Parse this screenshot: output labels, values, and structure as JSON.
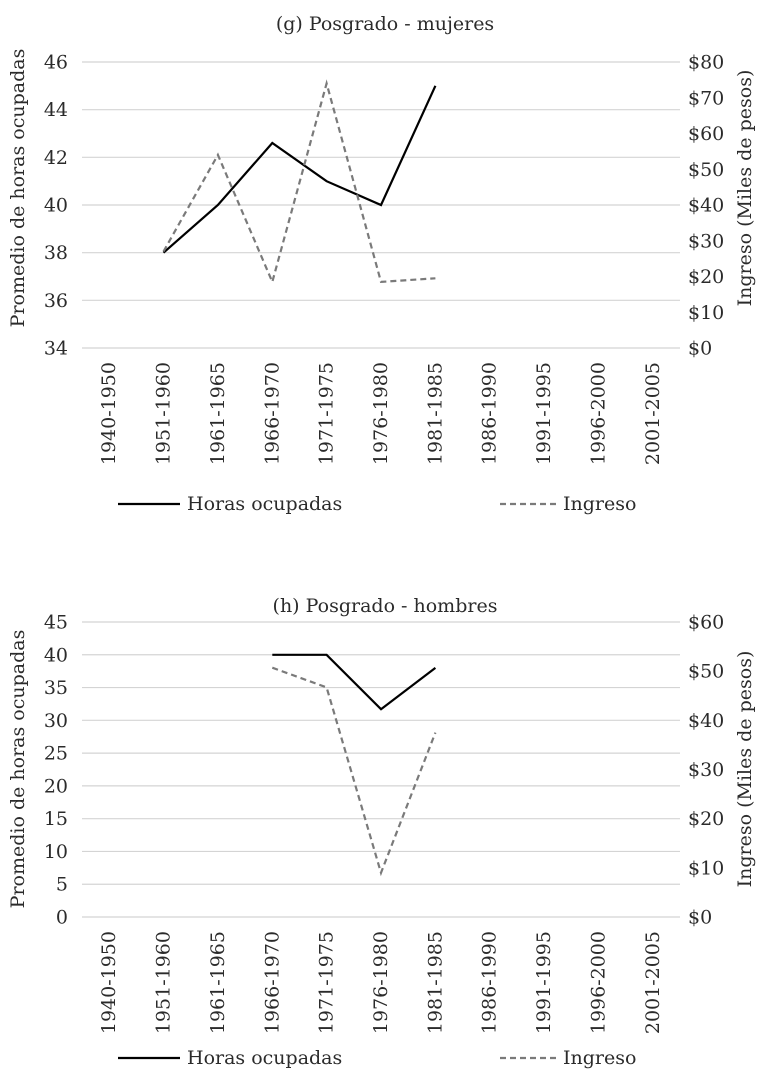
{
  "chart_data": [
    {
      "type": "line",
      "title": "(g) Posgrado - mujeres",
      "ylabel": "Promedio de horas ocupadas",
      "y2label": "Ingreso (Miles de pesos)",
      "categories": [
        "1940-1950",
        "1951-1960",
        "1961-1965",
        "1966-1970",
        "1971-1975",
        "1976-1980",
        "1981-1985",
        "1986-1990",
        "1991-1995",
        "1996-2000",
        "2001-2005"
      ],
      "ylim": [
        34,
        46
      ],
      "yticks": [
        34,
        36,
        38,
        40,
        42,
        44,
        46
      ],
      "y2lim": [
        0,
        80
      ],
      "y2ticks": [
        "$0",
        "$10",
        "$20",
        "$30",
        "$40",
        "$50",
        "$60",
        "$70",
        "$80"
      ],
      "grid": true,
      "legend_position": "bottom",
      "series": [
        {
          "name": "Horas ocupadas",
          "axis": "left",
          "style": "solid",
          "color": "#000000",
          "values": [
            null,
            38,
            40,
            42.6,
            41,
            40,
            45,
            null,
            null,
            null,
            null
          ]
        },
        {
          "name": "Ingreso",
          "axis": "right",
          "style": "dashed",
          "color": "#7a7a7a",
          "values": [
            null,
            27,
            54,
            18.5,
            74,
            18.5,
            19.5,
            null,
            null,
            null,
            null
          ]
        }
      ]
    },
    {
      "type": "line",
      "title": "(h) Posgrado - hombres",
      "ylabel": "Promedio de horas ocupadas",
      "y2label": "Ingreso (Miles de pesos)",
      "categories": [
        "1940-1950",
        "1951-1960",
        "1961-1965",
        "1966-1970",
        "1971-1975",
        "1976-1980",
        "1981-1985",
        "1986-1990",
        "1991-1995",
        "1996-2000",
        "2001-2005"
      ],
      "ylim": [
        0,
        45
      ],
      "yticks": [
        0,
        5,
        10,
        15,
        20,
        25,
        30,
        35,
        40,
        45
      ],
      "y2lim": [
        0,
        60
      ],
      "y2ticks": [
        "$0",
        "$10",
        "$20",
        "$30",
        "$40",
        "$50",
        "$60"
      ],
      "grid": true,
      "legend_position": "bottom",
      "series": [
        {
          "name": "Horas ocupadas",
          "axis": "left",
          "style": "solid",
          "color": "#000000",
          "values": [
            null,
            null,
            null,
            40,
            40,
            31.7,
            38,
            null,
            null,
            null,
            null
          ]
        },
        {
          "name": "Ingreso",
          "axis": "right",
          "style": "dashed",
          "color": "#7a7a7a",
          "values": [
            null,
            null,
            null,
            50.7,
            46.7,
            9,
            37.5,
            null,
            null,
            null,
            null
          ]
        }
      ]
    }
  ]
}
